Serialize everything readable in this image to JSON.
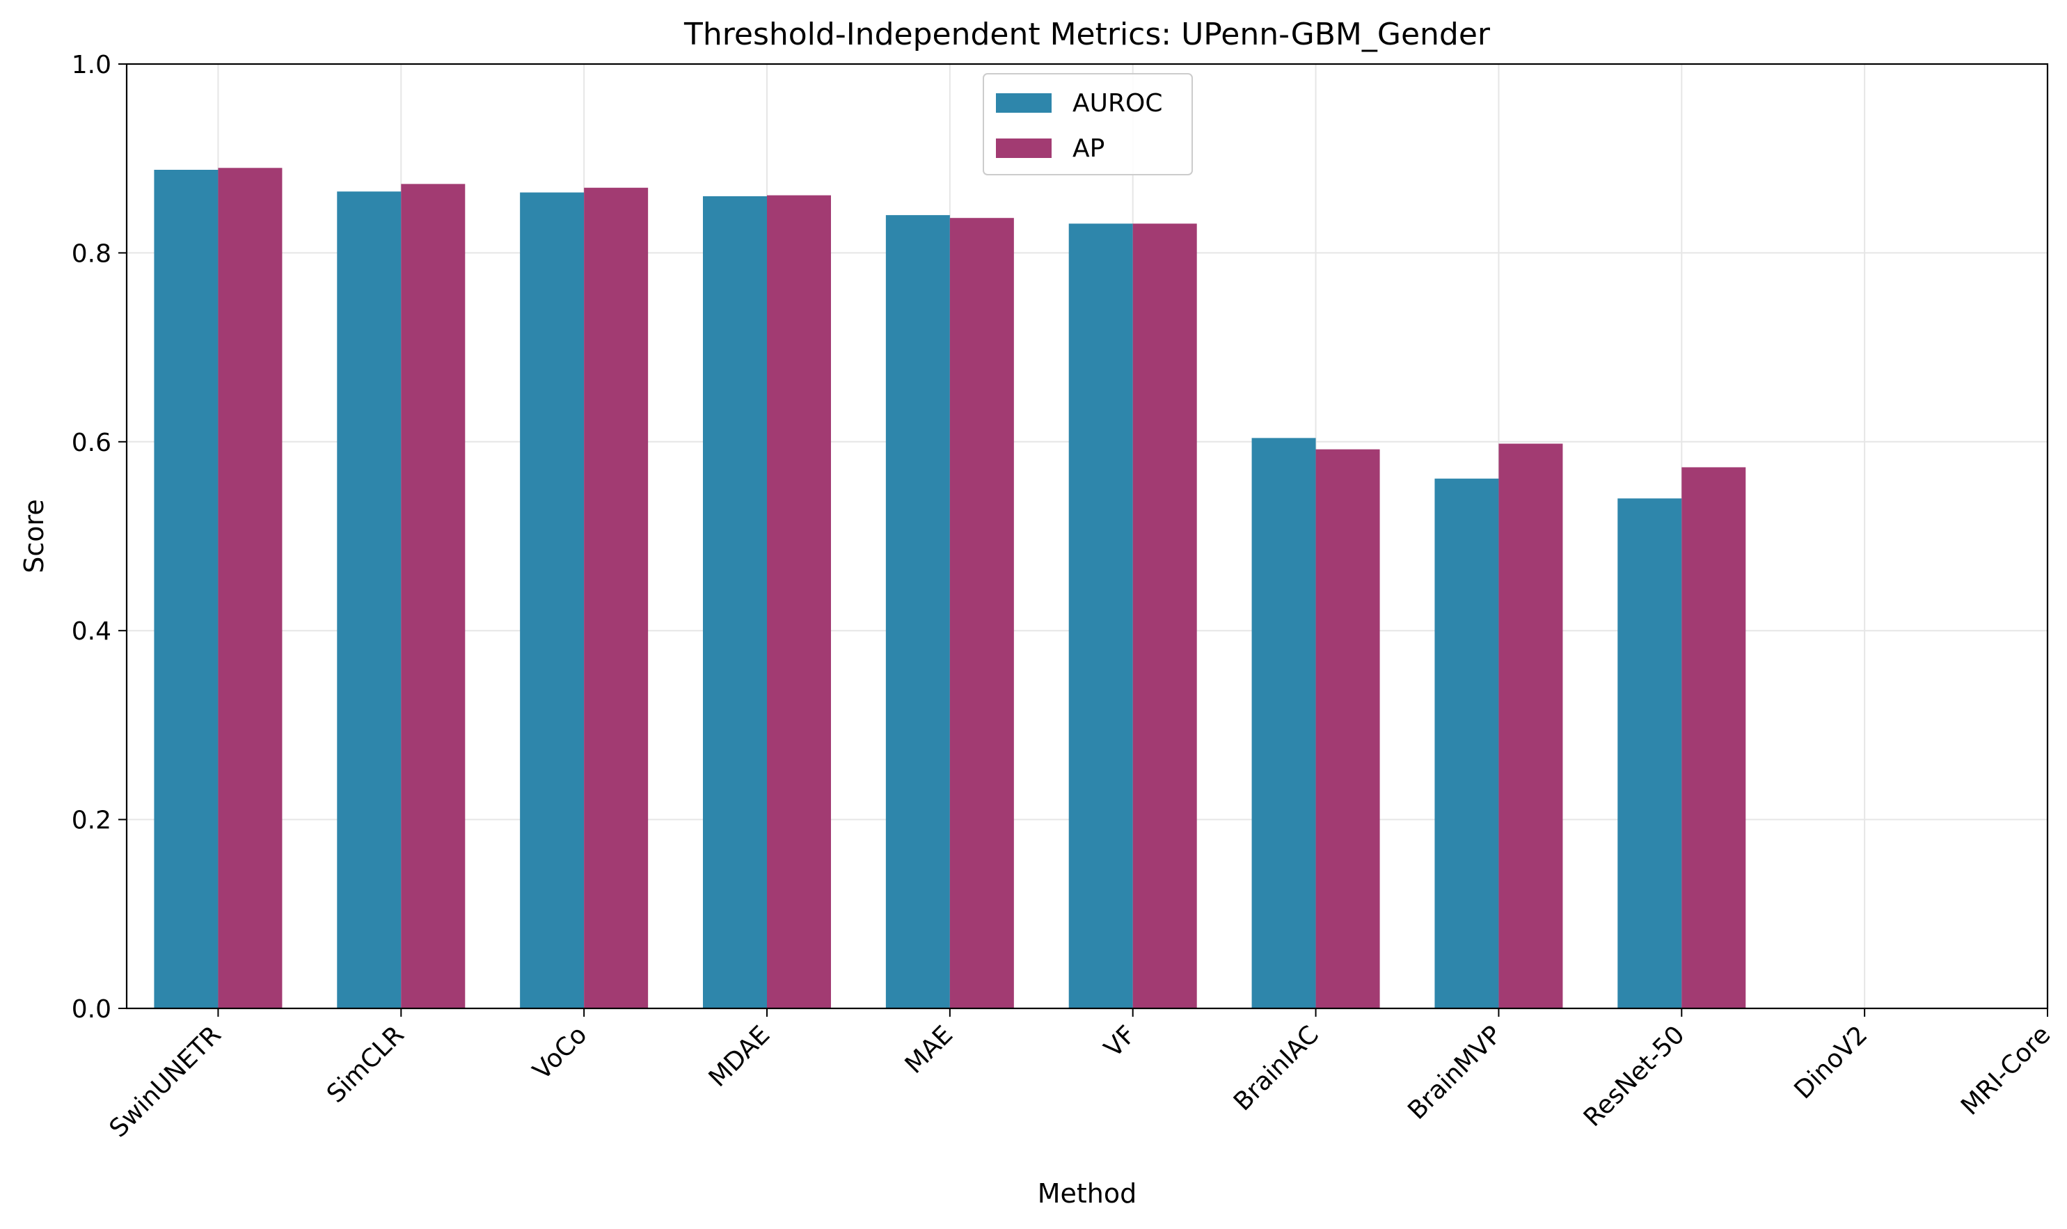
{
  "chart_data": {
    "type": "bar",
    "title": "Threshold-Independent Metrics: UPenn-GBM_Gender",
    "xlabel": "Method",
    "ylabel": "Score",
    "ylim": [
      0,
      1.0
    ],
    "yticks": [
      "0.0",
      "0.2",
      "0.4",
      "0.6",
      "0.8",
      "1.0"
    ],
    "grid": true,
    "legend_position": "top-center",
    "categories": [
      "SwinUNETR",
      "SimCLR",
      "VoCo",
      "MDAE",
      "MAE",
      "VF",
      "BrainIAC",
      "BrainMVP",
      "ResNet-50",
      "DinoV2",
      "MRI-Core"
    ],
    "series": [
      {
        "name": "AUROC",
        "color": "#2e86ab",
        "values": [
          0.888,
          0.865,
          0.864,
          0.86,
          0.84,
          0.831,
          0.604,
          0.561,
          0.54,
          null,
          null
        ]
      },
      {
        "name": "AP",
        "color": "#a23b72",
        "values": [
          0.89,
          0.873,
          0.869,
          0.861,
          0.837,
          0.831,
          0.592,
          0.598,
          0.573,
          null,
          null
        ]
      }
    ]
  }
}
